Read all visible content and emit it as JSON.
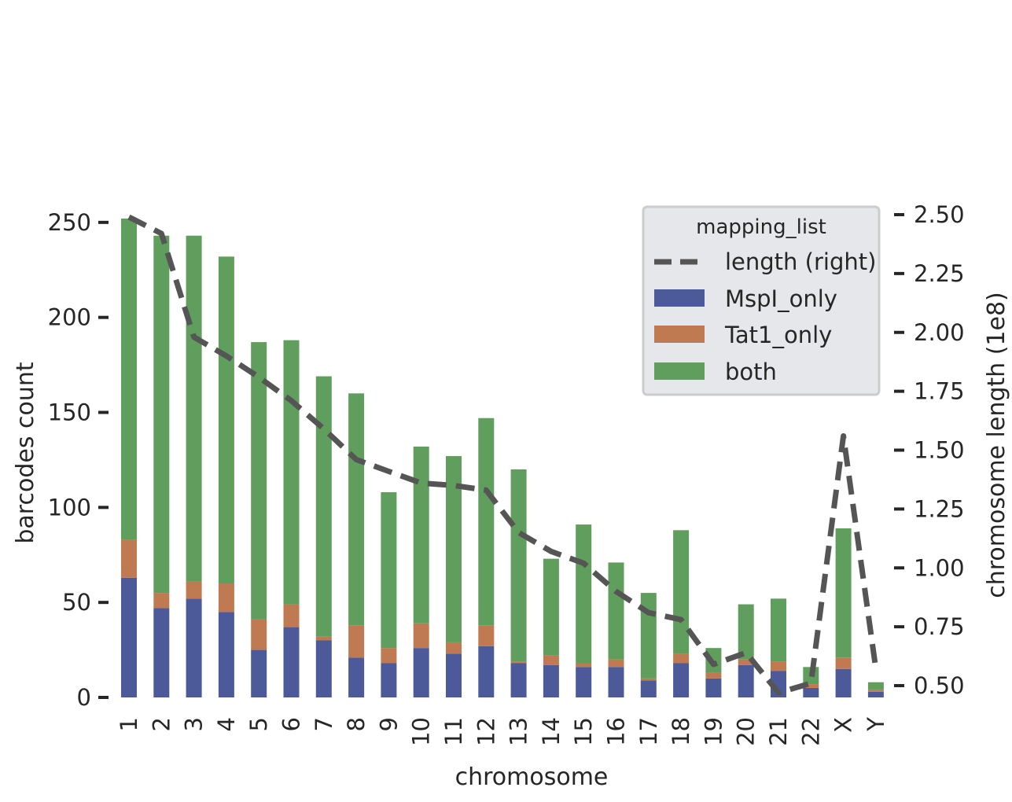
{
  "chart_data": {
    "type": "bar",
    "stacked": true,
    "categories": [
      "1",
      "2",
      "3",
      "4",
      "5",
      "6",
      "7",
      "8",
      "9",
      "10",
      "11",
      "12",
      "13",
      "14",
      "15",
      "16",
      "17",
      "18",
      "19",
      "20",
      "21",
      "22",
      "X",
      "Y"
    ],
    "series": [
      {
        "name": "MspI_only",
        "color": "#4c5a9a",
        "values": [
          63,
          47,
          52,
          45,
          25,
          37,
          30,
          21,
          18,
          26,
          23,
          27,
          18,
          17,
          16,
          16,
          9,
          18,
          10,
          17,
          14,
          5,
          15,
          3
        ]
      },
      {
        "name": "Tat1_only",
        "color": "#c07a52",
        "values": [
          20,
          8,
          9,
          15,
          16,
          12,
          2,
          17,
          8,
          13,
          6,
          11,
          1,
          5,
          2,
          4,
          1,
          5,
          3,
          3,
          5,
          2,
          6,
          1
        ]
      },
      {
        "name": "both",
        "color": "#5f9e5c",
        "values": [
          169,
          188,
          182,
          172,
          146,
          139,
          137,
          122,
          82,
          93,
          98,
          109,
          101,
          51,
          73,
          51,
          45,
          65,
          13,
          29,
          33,
          9,
          68,
          4
        ]
      }
    ],
    "line": {
      "name": "length (right)",
      "axis": "right",
      "color": "#555555",
      "style": "dashed",
      "values": [
        2.49,
        2.42,
        1.98,
        1.9,
        1.81,
        1.71,
        1.59,
        1.46,
        1.41,
        1.36,
        1.35,
        1.33,
        1.15,
        1.07,
        1.02,
        0.9,
        0.81,
        0.78,
        0.59,
        0.64,
        0.47,
        0.51,
        1.56,
        0.57
      ]
    },
    "xlabel": "chromosome",
    "ylabel": "barcodes count",
    "ylabel_right": "chromosome length (1e8)",
    "ylim": [
      0,
      252
    ],
    "yticks": [
      0,
      50,
      100,
      150,
      200,
      250
    ],
    "ylim_right": [
      0.44,
      2.51
    ],
    "yticks_right": [
      0.5,
      0.75,
      1.0,
      1.25,
      1.5,
      1.75,
      2.0,
      2.25,
      2.5
    ],
    "yticks_right_labels": [
      "0.50",
      "0.75",
      "1.00",
      "1.25",
      "1.50",
      "1.75",
      "2.00",
      "2.25",
      "2.50"
    ],
    "grid": false,
    "legend": {
      "title": "mapping_list",
      "position": "top-right",
      "entries": [
        "length (right)",
        "MspI_only",
        "Tat1_only",
        "both"
      ]
    }
  }
}
